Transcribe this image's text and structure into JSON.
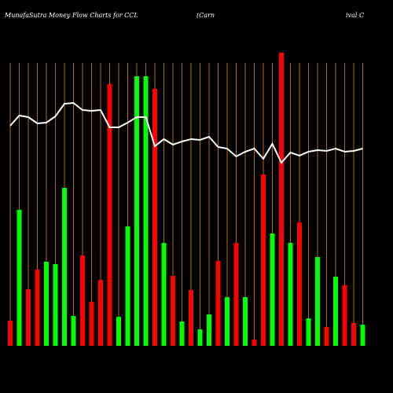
{
  "chart_data": {
    "type": "bar",
    "title": "MunafaSutra  Money Flow  Charts for CCL",
    "subtitle": [
      "(Carn",
      "ival C"
    ],
    "categories": [
      null,
      null,
      null,
      null,
      null,
      null,
      null,
      null,
      null,
      null,
      null,
      null,
      null,
      null,
      null,
      null,
      null,
      null,
      null,
      null,
      null,
      null,
      null,
      null,
      null,
      null,
      null,
      null,
      null,
      null,
      null,
      null,
      null,
      null,
      null,
      null,
      null,
      null,
      null,
      null
    ],
    "values": [
      32,
      173,
      72,
      97,
      107,
      104,
      201,
      38,
      115,
      56,
      84,
      333,
      37,
      152,
      343,
      343,
      327,
      131,
      89,
      31,
      71,
      21,
      40,
      108,
      62,
      131,
      62,
      8,
      218,
      143,
      373,
      131,
      157,
      35,
      113,
      24,
      88,
      77,
      29,
      27
    ],
    "colors": [
      "#ff0000",
      "#00ff00",
      "#ff0000",
      "#ff0000",
      "#00ff00",
      "#00ff00",
      "#00ff00",
      "#00ff00",
      "#ff0000",
      "#ff0000",
      "#ff0000",
      "#ff0000",
      "#00ff00",
      "#00ff00",
      "#00ff00",
      "#00ff00",
      "#ff0000",
      "#00ff00",
      "#ff0000",
      "#00ff00",
      "#ff0000",
      "#00ff00",
      "#00ff00",
      "#ff0000",
      "#00ff00",
      "#ff0000",
      "#00ff00",
      "#ff0000",
      "#ff0000",
      "#00ff00",
      "#ff0000",
      "#00ff00",
      "#ff0000",
      "#00ff00",
      "#00ff00",
      "#ff0000",
      "#00ff00",
      "#ff0000",
      "#ff0000",
      "#00ff00"
    ],
    "line": {
      "color": "#ffffff",
      "values": [
        280,
        293,
        291,
        283,
        284,
        292,
        308,
        309,
        300,
        299,
        300,
        278,
        278,
        284,
        291,
        291,
        254,
        263,
        256,
        260,
        263,
        262,
        266,
        253,
        251,
        241,
        247,
        251,
        238,
        257,
        233,
        246,
        242,
        247,
        249,
        248,
        251,
        247,
        248,
        251
      ]
    },
    "ylim": [
      0,
      380
    ]
  }
}
